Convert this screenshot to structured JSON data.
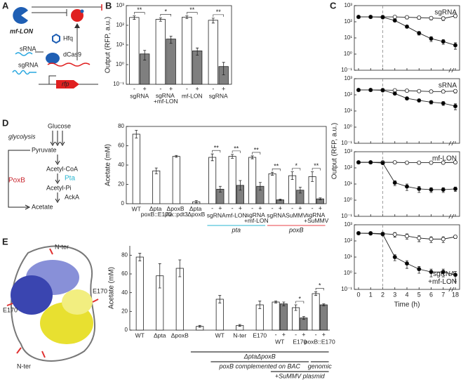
{
  "panel_labels": [
    "A",
    "B",
    "C",
    "D",
    "E"
  ],
  "diagram_a": {
    "mf_lon": "mf-LON",
    "hfq": "Hfq",
    "srna": "sRNA",
    "dcas9": "dCas9",
    "sgrna": "sgRNA",
    "rfp": "rfp"
  },
  "diagram_d": {
    "glucose": "Glucose",
    "glycolysis": "glycolysis",
    "pyruvate": "Pyruvate",
    "acetyl_coa": "Acetyl-CoA",
    "poxb": "PoxB",
    "pta": "Pta",
    "acetyl_pi": "Acetyl-Pi",
    "acka": "AckA",
    "acetate": "Acetate"
  },
  "diagram_e": {
    "labels": [
      "N-ter",
      "E170",
      "E170",
      "N-ter"
    ]
  },
  "chart_data": [
    {
      "type": "bar",
      "ylabel": "Output (RFP, a.u.)",
      "log_scale": true,
      "frame": true,
      "ylim": [
        0.1,
        1000
      ],
      "yticks": [
        {
          "value": 0.1,
          "label": "10⁻¹"
        },
        {
          "value": 1,
          "label": "10⁰"
        },
        {
          "value": 10,
          "label": "10¹"
        },
        {
          "value": 100,
          "label": "10²"
        },
        {
          "value": 1000,
          "label": "10³"
        }
      ],
      "categories": [
        "sgRNA",
        "sgRNA +mf-LON",
        "mf-LON",
        "sgRNA"
      ],
      "series": [
        {
          "name": "-",
          "color": "#ffffff",
          "values": [
            250,
            200,
            260,
            180
          ],
          "errors": [
            50,
            40,
            40,
            50
          ]
        },
        {
          "name": "+",
          "color": "#7f7f7f",
          "values": [
            3.5,
            20,
            5,
            0.8
          ],
          "errors": [
            1.8,
            8,
            2,
            0.5
          ]
        }
      ],
      "significance": [
        "**",
        "*",
        "**",
        "**"
      ]
    },
    {
      "type": "line",
      "label": "sgRNA",
      "label_corner": "upper right",
      "log_scale": true,
      "vline": 2,
      "ylim": [
        0.1,
        1000
      ],
      "yticks": [
        {
          "value": 0.1,
          "label": "10⁻¹"
        },
        {
          "value": 1,
          "label": "10⁰"
        },
        {
          "value": 10,
          "label": "10¹"
        },
        {
          "value": 100,
          "label": "10²"
        },
        {
          "value": 1000,
          "label": "10³"
        }
      ],
      "xlim": [
        0,
        18
      ],
      "xticks": [
        0,
        1,
        2,
        3,
        4,
        5,
        6,
        7,
        18
      ],
      "x": [
        0,
        1,
        2,
        3,
        4,
        5,
        6,
        7,
        18
      ],
      "series": [
        {
          "color": "#ffffff",
          "values": [
            200,
            200,
            200,
            200,
            190,
            180,
            170,
            160,
            230
          ],
          "errors": [
            30,
            30,
            30,
            40,
            40,
            40,
            40,
            40,
            50
          ]
        },
        {
          "color": "#000000",
          "values": [
            200,
            200,
            190,
            120,
            50,
            20,
            9,
            6,
            3.5
          ],
          "errors": [
            20,
            20,
            20,
            20,
            10,
            5,
            3,
            2,
            1.5
          ]
        }
      ]
    },
    {
      "type": "line",
      "label": "sRNA",
      "label_corner": "upper right",
      "log_scale": true,
      "vline": 2,
      "ylabel": "Output (RFP, a.u.)",
      "ylim": [
        0.1,
        1000
      ],
      "yticks": [
        {
          "value": 0.1,
          "label": "10⁻¹"
        },
        {
          "value": 1,
          "label": "10⁰"
        },
        {
          "value": 10,
          "label": "10¹"
        },
        {
          "value": 100,
          "label": "10²"
        },
        {
          "value": 1000,
          "label": "10³"
        }
      ],
      "xlim": [
        0,
        18
      ],
      "xticks": [
        0,
        1,
        2,
        3,
        4,
        5,
        6,
        7,
        18
      ],
      "x": [
        0,
        1,
        2,
        3,
        4,
        5,
        6,
        7,
        18
      ],
      "series": [
        {
          "color": "#ffffff",
          "values": [
            200,
            200,
            200,
            190,
            180,
            170,
            160,
            160,
            170
          ],
          "errors": [
            30,
            30,
            30,
            30,
            30,
            30,
            30,
            30,
            40
          ]
        },
        {
          "color": "#000000",
          "values": [
            200,
            200,
            190,
            120,
            60,
            45,
            35,
            30,
            20
          ],
          "errors": [
            20,
            20,
            20,
            20,
            10,
            8,
            8,
            8,
            8
          ]
        }
      ]
    },
    {
      "type": "line",
      "label": "mf-LON",
      "label_corner": "upper right",
      "log_scale": true,
      "vline": 2,
      "ylim": [
        0.1,
        1000
      ],
      "yticks": [
        {
          "value": 0.1,
          "label": "10⁻¹"
        },
        {
          "value": 1,
          "label": "10⁰"
        },
        {
          "value": 10,
          "label": "10¹"
        },
        {
          "value": 100,
          "label": "10²"
        },
        {
          "value": 1000,
          "label": "10³"
        }
      ],
      "xlim": [
        0,
        18
      ],
      "xticks": [
        0,
        1,
        2,
        3,
        4,
        5,
        6,
        7,
        18
      ],
      "x": [
        0,
        1,
        2,
        3,
        4,
        5,
        6,
        7,
        18
      ],
      "series": [
        {
          "color": "#ffffff",
          "values": [
            220,
            220,
            220,
            220,
            210,
            210,
            210,
            210,
            220
          ],
          "errors": [
            20,
            20,
            20,
            20,
            20,
            20,
            20,
            20,
            20
          ]
        },
        {
          "color": "#000000",
          "values": [
            220,
            220,
            200,
            12,
            7,
            5,
            4.5,
            4.5,
            5
          ],
          "errors": [
            20,
            20,
            20,
            4,
            3,
            2,
            1.5,
            1.5,
            1.5
          ]
        }
      ]
    },
    {
      "type": "line",
      "label": "sgRNA +mf-LON",
      "label_corner": "lower right",
      "log_scale": true,
      "vline": 2,
      "xlabel": "Time (h)",
      "ylim": [
        0.1,
        1000
      ],
      "yticks": [
        {
          "value": 0.1,
          "label": "10⁻¹"
        },
        {
          "value": 1,
          "label": "10⁰"
        },
        {
          "value": 10,
          "label": "10¹"
        },
        {
          "value": 100,
          "label": "10²"
        },
        {
          "value": 1000,
          "label": "10³"
        }
      ],
      "xlim": [
        0,
        18
      ],
      "xticks": [
        0,
        1,
        2,
        3,
        4,
        5,
        6,
        7,
        18
      ],
      "x": [
        0,
        1,
        2,
        3,
        4,
        5,
        6,
        7,
        18
      ],
      "series": [
        {
          "color": "#ffffff",
          "values": [
            300,
            300,
            280,
            250,
            200,
            150,
            130,
            130,
            180
          ],
          "errors": [
            50,
            50,
            50,
            80,
            70,
            60,
            50,
            50,
            40
          ]
        },
        {
          "color": "#000000",
          "values": [
            300,
            290,
            260,
            10,
            4,
            1.8,
            1.2,
            1.2,
            0.8
          ],
          "errors": [
            30,
            30,
            30,
            4,
            2,
            0.8,
            0.6,
            0.6,
            0.5
          ]
        }
      ]
    },
    {
      "type": "bar",
      "ylabel": "Acetate (mM)",
      "frame": true,
      "ylim": [
        0,
        80
      ],
      "yticks": [
        0,
        20,
        40,
        60,
        80
      ],
      "categories": [
        "WT",
        "Δpta poxB::E170",
        "ΔpoxB pta::pdt3",
        "Δpta ΔpoxB",
        "sgRNA",
        "mf-LON",
        "sgRNA +mf-LON",
        "sgRNA",
        "SuMMV",
        "sgRNA +SuMMV"
      ],
      "series": [
        {
          "name": "-",
          "color": "#ffffff",
          "values": [
            72,
            34,
            49,
            2,
            48,
            49,
            48,
            31,
            29,
            28
          ],
          "errors": [
            4,
            3,
            1,
            1.2,
            3.5,
            2,
            1.5,
            1.5,
            4,
            5
          ]
        },
        {
          "name": "+",
          "color": "#7f7f7f",
          "values": [
            null,
            null,
            null,
            null,
            15,
            19,
            18,
            4,
            14,
            5
          ],
          "errors": [
            null,
            null,
            null,
            null,
            3,
            5,
            4,
            0.8,
            3,
            1
          ]
        }
      ],
      "significance": [
        null,
        null,
        null,
        null,
        "**",
        "**",
        "**",
        "**",
        "*",
        "**"
      ],
      "group_labels": [
        {
          "text": "pta",
          "color": "#29b6d1"
        },
        {
          "text": "poxB",
          "color": "#e8414a"
        }
      ]
    },
    {
      "type": "bar",
      "ylabel": "Acetate (mM)",
      "frame": false,
      "ylim": [
        0,
        90
      ],
      "yticks": [
        0,
        20,
        40,
        60,
        80
      ],
      "categories": [
        "WT",
        "Δpta",
        "ΔpoxB",
        null,
        "WT",
        "N-ter",
        "E170",
        "WT",
        "E170",
        "poxB::E170"
      ],
      "series": [
        {
          "name": "-",
          "color": "#ffffff",
          "values": [
            78,
            58,
            66,
            4,
            33,
            5,
            27,
            30,
            24,
            39
          ],
          "errors": [
            4,
            13,
            9,
            1,
            4,
            1,
            4,
            1,
            3,
            2
          ]
        },
        {
          "name": "+",
          "color": "#7f7f7f",
          "values": [
            null,
            null,
            null,
            null,
            null,
            null,
            null,
            28,
            13,
            27
          ],
          "errors": [
            null,
            null,
            null,
            null,
            null,
            null,
            null,
            2,
            1.5,
            1
          ]
        }
      ],
      "significance": [
        null,
        null,
        null,
        null,
        null,
        null,
        null,
        null,
        "*",
        "*"
      ],
      "group_labels": [
        {
          "text": "ΔptaΔpoxB",
          "color": "#000000"
        },
        {
          "text": "poxB complemented on BAC",
          "color": "#000000"
        },
        {
          "text": "genomic",
          "color": "#000000"
        },
        {
          "text": "+SuMMV plasmid",
          "color": "#000000"
        }
      ]
    }
  ]
}
